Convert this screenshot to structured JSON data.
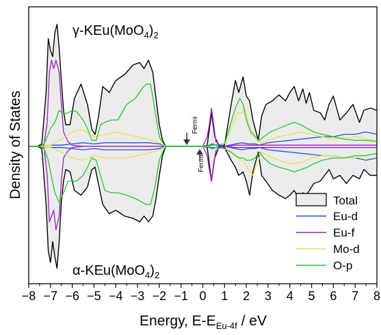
{
  "chart_data": {
    "type": "area",
    "xlabel_main": "Energy, E-E",
    "xlabel_sub": "Eu-4f",
    "xlabel_unit": " / eV",
    "ylabel": "Density of States",
    "xlim": [
      -8,
      8
    ],
    "xticks": [
      -8,
      -7,
      -6,
      -5,
      -4,
      -3,
      -2,
      -1,
      0,
      1,
      2,
      3,
      4,
      5,
      6,
      7,
      8
    ],
    "xticklabels": [
      "−8",
      "−7",
      "−6",
      "−5",
      "−4",
      "−3",
      "−2",
      "−1",
      "0",
      "1",
      "2",
      "3",
      "4",
      "5",
      "6",
      "7",
      "8"
    ],
    "ylim": [
      -1.15,
      1.15
    ],
    "y_ticks_shown": false,
    "legend_position": "bottom-right",
    "panels": {
      "top": {
        "label_main": "γ-KEu(MoO",
        "label_sub": "4",
        "label_close": ")",
        "label_sub2": "2"
      },
      "bottom": {
        "label_main": "α-KEu(MoO",
        "label_sub": "4",
        "label_close": ")",
        "label_sub2": "2"
      }
    },
    "annotations": [
      {
        "text": "Fermi",
        "x": -0.95,
        "panel": "top"
      },
      {
        "text": "Fermi",
        "x": -0.95,
        "panel": "bottom"
      }
    ],
    "colors": {
      "Total": "#000000",
      "Total_fill": "#ebebeb",
      "Eu-d": "#1f4fe6",
      "Eu-f": "#9a1fc8",
      "Mo-d": "#e8e04a",
      "O-p": "#22c92a"
    },
    "series": [
      {
        "name": "Total",
        "fill": true,
        "x": [
          -8.0,
          -7.6,
          -7.4,
          -7.2,
          -7.1,
          -7.0,
          -6.9,
          -6.8,
          -6.7,
          -6.6,
          -6.5,
          -6.4,
          -6.3,
          -6.1,
          -5.9,
          -5.6,
          -5.3,
          -5.1,
          -4.95,
          -4.8,
          -4.6,
          -4.3,
          -4.0,
          -3.6,
          -3.2,
          -2.9,
          -2.7,
          -2.5,
          -2.3,
          -2.15,
          -2.0,
          -1.85,
          -1.7,
          -1.0,
          0.0,
          0.2,
          0.4,
          0.55,
          0.75,
          1.0,
          1.3,
          1.5,
          1.65,
          1.85,
          2.0,
          2.15,
          2.3,
          2.45,
          2.55,
          2.7,
          2.9,
          3.2,
          3.5,
          3.8,
          4.0,
          4.2,
          4.4,
          4.6,
          4.75,
          4.9,
          5.1,
          5.4,
          5.6,
          5.8,
          6.0,
          6.3,
          6.6,
          6.9,
          7.2,
          7.4,
          7.7,
          8.0
        ],
        "top": [
          0,
          0,
          0.02,
          0.45,
          0.9,
          0.8,
          0.75,
          0.95,
          1.02,
          0.82,
          0.55,
          0.3,
          0.18,
          0.18,
          0.4,
          0.52,
          0.35,
          0.14,
          0.1,
          0.24,
          0.5,
          0.45,
          0.55,
          0.6,
          0.68,
          0.7,
          0.65,
          0.72,
          0.62,
          0.4,
          0.18,
          0.05,
          0,
          0,
          0,
          0.01,
          0.28,
          0.08,
          0,
          0.01,
          0.35,
          0.55,
          0.45,
          0.58,
          0.42,
          0.38,
          0.22,
          0.12,
          0.05,
          0.25,
          0.35,
          0.38,
          0.43,
          0.38,
          0.45,
          0.5,
          0.38,
          0.48,
          0.36,
          0.45,
          0.3,
          0.28,
          0.22,
          0.35,
          0.42,
          0.22,
          0.28,
          0.35,
          0.2,
          0.3,
          0.32,
          0.3
        ],
        "bot": [
          0,
          0,
          -0.02,
          -0.5,
          -0.9,
          -1.0,
          -0.82,
          -0.95,
          -1.05,
          -0.82,
          -0.48,
          -0.3,
          -0.2,
          -0.22,
          -0.38,
          -0.42,
          -0.35,
          -0.2,
          -0.18,
          -0.32,
          -0.5,
          -0.58,
          -0.55,
          -0.6,
          -0.62,
          -0.65,
          -0.6,
          -0.65,
          -0.6,
          -0.45,
          -0.25,
          -0.08,
          0,
          0,
          0,
          -0.01,
          -0.3,
          -0.1,
          0,
          -0.01,
          -0.12,
          -0.18,
          -0.25,
          -0.22,
          -0.3,
          -0.42,
          -0.22,
          -0.12,
          -0.05,
          -0.25,
          -0.3,
          -0.38,
          -0.42,
          -0.45,
          -0.42,
          -0.38,
          -0.45,
          -0.4,
          -0.42,
          -0.38,
          -0.32,
          -0.3,
          -0.25,
          -0.2,
          -0.28,
          -0.25,
          -0.32,
          -0.25,
          -0.28,
          -0.2,
          -0.25,
          -0.25
        ]
      },
      {
        "name": "Eu-d",
        "x": [
          -8.0,
          -7.5,
          -7.0,
          -6.5,
          -6.0,
          -5.5,
          -5.0,
          -4.5,
          -4.0,
          -3.5,
          -3.0,
          -2.5,
          -2.0,
          -1.7,
          0.0,
          0.3,
          0.45,
          0.6,
          1.0,
          1.5,
          1.8,
          2.1,
          2.4,
          2.6,
          3.0,
          3.5,
          4.0,
          4.5,
          5.0,
          5.5,
          6.0,
          6.5,
          7.0,
          7.5,
          8.0
        ],
        "top": [
          0,
          0,
          0.01,
          0.01,
          0.02,
          0.03,
          0.02,
          0.03,
          0.03,
          0.03,
          0.03,
          0.03,
          0.02,
          0,
          0,
          0.01,
          0.02,
          0.01,
          0,
          0.02,
          0.03,
          0.02,
          0.02,
          0.01,
          0.03,
          0.04,
          0.05,
          0.06,
          0.07,
          0.08,
          0.08,
          0.1,
          0.1,
          0.12,
          0.1
        ],
        "bot": [
          0,
          0,
          -0.01,
          -0.01,
          -0.02,
          -0.03,
          -0.02,
          -0.03,
          -0.03,
          -0.03,
          -0.03,
          -0.03,
          -0.02,
          0,
          0,
          -0.01,
          -0.02,
          -0.01,
          0,
          -0.02,
          -0.03,
          -0.02,
          -0.02,
          -0.01,
          -0.03,
          -0.04,
          -0.05,
          -0.06,
          -0.07,
          -0.08,
          -0.08,
          -0.1,
          -0.1,
          -0.12,
          -0.1
        ]
      },
      {
        "name": "Eu-f",
        "x": [
          -8.0,
          -7.5,
          -7.3,
          -7.15,
          -7.05,
          -6.95,
          -6.85,
          -6.75,
          -6.6,
          -6.5,
          -6.4,
          -6.2,
          -6.0,
          -5.5,
          -1.7,
          0.0,
          0.2,
          0.3,
          0.4,
          0.5,
          0.6,
          0.8,
          1.0,
          1.5,
          2.0,
          2.5,
          3.0,
          4.0,
          5.0,
          6.0,
          7.0,
          8.0
        ],
        "top": [
          0,
          0,
          0.01,
          0.2,
          0.62,
          0.72,
          0.65,
          0.72,
          0.62,
          0.35,
          0.12,
          0.04,
          0.01,
          0,
          0,
          0,
          0.08,
          0.18,
          0.32,
          0.18,
          0.04,
          0.01,
          0,
          0.01,
          0.01,
          0.01,
          0.01,
          0.01,
          0.01,
          0.01,
          0.01,
          0.01
        ],
        "bot": [
          0,
          0,
          -0.01,
          -0.25,
          -0.65,
          -0.6,
          -0.55,
          -0.72,
          -0.6,
          -0.3,
          -0.1,
          -0.04,
          -0.01,
          0,
          0,
          0,
          -0.08,
          -0.2,
          -0.3,
          -0.15,
          -0.04,
          -0.01,
          0,
          -0.01,
          -0.01,
          -0.01,
          -0.01,
          -0.01,
          -0.01,
          -0.01,
          -0.01,
          -0.01
        ]
      },
      {
        "name": "Mo-d",
        "x": [
          -8.0,
          -7.5,
          -7.0,
          -6.5,
          -6.0,
          -5.5,
          -5.0,
          -4.5,
          -4.0,
          -3.5,
          -3.0,
          -2.5,
          -2.0,
          -1.7,
          0.0,
          1.0,
          1.3,
          1.6,
          1.8,
          1.95,
          2.1,
          2.3,
          2.5,
          2.7,
          3.0,
          3.5,
          4.0,
          4.5,
          5.0,
          5.5,
          6.0,
          6.5,
          7.0,
          7.5,
          8.0
        ],
        "top": [
          0,
          0,
          0.01,
          0.06,
          0.12,
          0.14,
          0.08,
          0.1,
          0.12,
          0.1,
          0.08,
          0.06,
          0.03,
          0,
          0,
          0.02,
          0.15,
          0.28,
          0.28,
          0.32,
          0.18,
          0.12,
          0.05,
          0.03,
          0.05,
          0.08,
          0.1,
          0.12,
          0.1,
          0.08,
          0.06,
          0.07,
          0.08,
          0.06,
          0.05
        ],
        "bot": [
          0,
          0,
          -0.01,
          -0.05,
          -0.1,
          -0.12,
          -0.08,
          -0.1,
          -0.1,
          -0.1,
          -0.08,
          -0.06,
          -0.03,
          0,
          0,
          -0.02,
          -0.05,
          -0.1,
          -0.12,
          -0.15,
          -0.2,
          -0.25,
          -0.15,
          -0.05,
          -0.08,
          -0.12,
          -0.15,
          -0.14,
          -0.1,
          -0.08,
          -0.08,
          -0.1,
          -0.1,
          -0.08,
          -0.06
        ]
      },
      {
        "name": "O-p",
        "x": [
          -8.0,
          -7.5,
          -7.3,
          -7.1,
          -7.0,
          -6.8,
          -6.6,
          -6.4,
          -6.2,
          -6.0,
          -5.8,
          -5.5,
          -5.3,
          -5.1,
          -4.9,
          -4.7,
          -4.5,
          -4.2,
          -3.9,
          -3.5,
          -3.1,
          -2.8,
          -2.6,
          -2.4,
          -2.2,
          -2.0,
          -1.8,
          -1.7,
          0.0,
          1.0,
          1.3,
          1.5,
          1.7,
          1.85,
          2.0,
          2.2,
          2.4,
          2.6,
          2.8,
          3.1,
          3.5,
          3.9,
          4.2,
          4.5,
          4.8,
          5.1,
          5.5,
          6.0,
          6.5,
          7.0,
          7.5,
          8.0
        ],
        "top": [
          0,
          0,
          0.02,
          0.1,
          0.15,
          0.2,
          0.3,
          0.27,
          0.28,
          0.3,
          0.29,
          0.22,
          0.15,
          0.05,
          0.05,
          0.18,
          0.2,
          0.22,
          0.22,
          0.35,
          0.4,
          0.48,
          0.52,
          0.52,
          0.3,
          0.08,
          0.02,
          0,
          0,
          0.02,
          0.2,
          0.32,
          0.4,
          0.35,
          0.22,
          0.12,
          0.08,
          0.05,
          0.08,
          0.12,
          0.15,
          0.18,
          0.2,
          0.18,
          0.15,
          0.12,
          0.1,
          0.08,
          0.06,
          0.05,
          0.05,
          0.04
        ],
        "bot": [
          0,
          0,
          -0.02,
          -0.12,
          -0.22,
          -0.4,
          -0.48,
          -0.4,
          -0.3,
          -0.3,
          -0.3,
          -0.25,
          -0.18,
          -0.1,
          -0.12,
          -0.25,
          -0.38,
          -0.4,
          -0.4,
          -0.42,
          -0.45,
          -0.48,
          -0.5,
          -0.5,
          -0.35,
          -0.12,
          -0.03,
          0,
          0,
          -0.02,
          -0.05,
          -0.08,
          -0.1,
          -0.1,
          -0.12,
          -0.12,
          -0.1,
          -0.05,
          -0.1,
          -0.15,
          -0.18,
          -0.2,
          -0.22,
          -0.2,
          -0.18,
          -0.15,
          -0.12,
          -0.1,
          -0.1,
          -0.08,
          -0.08,
          -0.06
        ]
      }
    ],
    "legend": [
      {
        "label": "Total",
        "marker": "box"
      },
      {
        "label": "Eu-d",
        "marker": "line"
      },
      {
        "label": "Eu-f",
        "marker": "line"
      },
      {
        "label": "Mo-d",
        "marker": "line"
      },
      {
        "label": "O-p",
        "marker": "line"
      }
    ]
  }
}
